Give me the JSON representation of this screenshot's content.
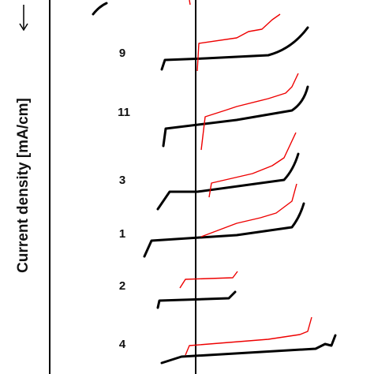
{
  "axis_label": "Current density [mA/cm]",
  "curve_labels": [
    "9",
    "11",
    "3",
    "1",
    "2",
    "4"
  ]
}
